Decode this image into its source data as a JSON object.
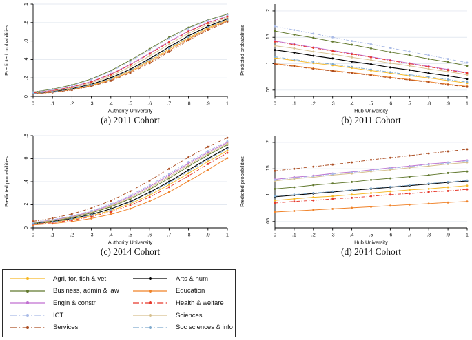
{
  "styles": {
    "agri": {
      "label": "Agri, for, fish & vet",
      "color": "#f6b824",
      "dash": false
    },
    "arts": {
      "label": "Arts & hum",
      "color": "#000000",
      "dash": false
    },
    "business": {
      "label": "Business, admin & law",
      "color": "#62792f",
      "dash": false
    },
    "education": {
      "label": "Education",
      "color": "#f08228",
      "dash": false
    },
    "engin": {
      "label": "Engin & constr",
      "color": "#c06fd0",
      "dash": false
    },
    "health": {
      "label": "Health & welfare",
      "color": "#e6372a",
      "dash": true
    },
    "ict": {
      "label": "ICT",
      "color": "#a9bae6",
      "dash": true
    },
    "sciences": {
      "label": "Sciences",
      "color": "#d6bf8d",
      "dash": false
    },
    "services": {
      "label": "Services",
      "color": "#ab4d22",
      "dash": true
    },
    "socsci": {
      "label": "Soc sciences & info",
      "color": "#7ea9cd",
      "dash": true
    }
  },
  "legend": {
    "items": [
      "agri",
      "arts",
      "business",
      "education",
      "engin",
      "health",
      "ict",
      "sciences",
      "services",
      "socsci"
    ]
  },
  "chart_data": [
    {
      "type": "line",
      "caption": "(a) 2011 Cohort",
      "xlabel": "Authority University",
      "ylabel": "Predicted probabilities",
      "x": [
        0,
        0.1,
        0.2,
        0.3,
        0.4,
        0.5,
        0.6,
        0.7,
        0.8,
        0.9,
        1
      ],
      "xtick_labels": [
        "0",
        ".1",
        ".2",
        ".3",
        ".4",
        ".5",
        ".6",
        ".7",
        ".8",
        ".9",
        "1"
      ],
      "ylim": [
        0,
        1
      ],
      "yticks": [
        0,
        0.2,
        0.4,
        0.6,
        0.8,
        1
      ],
      "ytick_labels": [
        "0",
        ".2",
        ".4",
        ".6",
        ".8",
        "1"
      ],
      "grid": true,
      "series": [
        {
          "key": "agri",
          "values": [
            0.029,
            0.048,
            0.077,
            0.121,
            0.187,
            0.276,
            0.387,
            0.512,
            0.635,
            0.743,
            0.828
          ]
        },
        {
          "key": "arts",
          "values": [
            0.032,
            0.052,
            0.083,
            0.131,
            0.201,
            0.294,
            0.409,
            0.535,
            0.656,
            0.76,
            0.84
          ]
        },
        {
          "key": "business",
          "values": [
            0.048,
            0.078,
            0.123,
            0.189,
            0.279,
            0.391,
            0.515,
            0.639,
            0.746,
            0.83,
            0.89
          ]
        },
        {
          "key": "education",
          "values": [
            0.028,
            0.045,
            0.073,
            0.115,
            0.177,
            0.264,
            0.373,
            0.497,
            0.621,
            0.732,
            0.819
          ]
        },
        {
          "key": "engin",
          "values": [
            0.04,
            0.065,
            0.104,
            0.161,
            0.242,
            0.346,
            0.468,
            0.594,
            0.708,
            0.801,
            0.87
          ]
        },
        {
          "key": "health",
          "values": [
            0.039,
            0.063,
            0.101,
            0.157,
            0.237,
            0.34,
            0.461,
            0.586,
            0.702,
            0.796,
            0.866
          ]
        },
        {
          "key": "ict",
          "values": [
            0.046,
            0.074,
            0.118,
            0.181,
            0.269,
            0.379,
            0.503,
            0.627,
            0.736,
            0.822,
            0.885
          ]
        },
        {
          "key": "sciences",
          "values": [
            0.036,
            0.058,
            0.093,
            0.146,
            0.221,
            0.32,
            0.438,
            0.564,
            0.683,
            0.781,
            0.856
          ]
        },
        {
          "key": "services",
          "values": [
            0.026,
            0.043,
            0.069,
            0.109,
            0.169,
            0.253,
            0.359,
            0.482,
            0.607,
            0.72,
            0.81
          ]
        },
        {
          "key": "socsci",
          "values": [
            0.03,
            0.049,
            0.079,
            0.125,
            0.191,
            0.282,
            0.395,
            0.52,
            0.642,
            0.749,
            0.832
          ]
        }
      ]
    },
    {
      "type": "line",
      "caption": "(b) 2011 Cohort",
      "xlabel": "Hub University",
      "ylabel": "Predicted probabilities",
      "x": [
        0,
        0.1,
        0.2,
        0.3,
        0.4,
        0.5,
        0.6,
        0.7,
        0.8,
        0.9,
        1
      ],
      "xtick_labels": [
        "0",
        ".1",
        ".2",
        ".3",
        ".4",
        ".5",
        ".6",
        ".7",
        ".8",
        ".9",
        "1"
      ],
      "ylim": [
        0.038,
        0.213
      ],
      "yticks": [
        0.05,
        0.1,
        0.15,
        0.2
      ],
      "ytick_labels": [
        ".05",
        ".1",
        ".15",
        ".2"
      ],
      "grid": true,
      "series": [
        {
          "key": "agri",
          "values": [
            0.111,
            0.106,
            0.101,
            0.097,
            0.092,
            0.087,
            0.082,
            0.077,
            0.073,
            0.068,
            0.063
          ]
        },
        {
          "key": "arts",
          "values": [
            0.126,
            0.121,
            0.115,
            0.11,
            0.104,
            0.099,
            0.093,
            0.088,
            0.082,
            0.077,
            0.071
          ]
        },
        {
          "key": "business",
          "values": [
            0.162,
            0.155,
            0.149,
            0.142,
            0.136,
            0.129,
            0.122,
            0.116,
            0.109,
            0.103,
            0.096
          ]
        },
        {
          "key": "education",
          "values": [
            0.1,
            0.096,
            0.091,
            0.087,
            0.083,
            0.079,
            0.074,
            0.07,
            0.066,
            0.061,
            0.057
          ]
        },
        {
          "key": "engin",
          "values": [
            0.143,
            0.137,
            0.131,
            0.125,
            0.119,
            0.113,
            0.107,
            0.101,
            0.095,
            0.089,
            0.083
          ]
        },
        {
          "key": "health",
          "values": [
            0.142,
            0.136,
            0.13,
            0.124,
            0.118,
            0.112,
            0.106,
            0.1,
            0.094,
            0.088,
            0.082
          ]
        },
        {
          "key": "ict",
          "values": [
            0.171,
            0.164,
            0.157,
            0.15,
            0.143,
            0.137,
            0.13,
            0.123,
            0.116,
            0.109,
            0.102
          ]
        },
        {
          "key": "sciences",
          "values": [
            0.134,
            0.129,
            0.123,
            0.118,
            0.112,
            0.107,
            0.101,
            0.096,
            0.09,
            0.085,
            0.079
          ]
        },
        {
          "key": "services",
          "values": [
            0.099,
            0.095,
            0.09,
            0.086,
            0.082,
            0.078,
            0.073,
            0.069,
            0.065,
            0.06,
            0.056
          ]
        },
        {
          "key": "socsci",
          "values": [
            0.113,
            0.108,
            0.103,
            0.099,
            0.094,
            0.089,
            0.084,
            0.079,
            0.075,
            0.07,
            0.065
          ]
        }
      ]
    },
    {
      "type": "line",
      "caption": "(c) 2014 Cohort",
      "xlabel": "Authority University",
      "ylabel": "Predicted probabilities",
      "x": [
        0,
        0.1,
        0.2,
        0.3,
        0.4,
        0.5,
        0.6,
        0.7,
        0.8,
        0.9,
        1
      ],
      "xtick_labels": [
        "0",
        ".1",
        ".2",
        ".3",
        ".4",
        ".5",
        ".6",
        ".7",
        ".8",
        ".9",
        "1"
      ],
      "ylim": [
        0,
        0.8
      ],
      "yticks": [
        0,
        0.2,
        0.4,
        0.6,
        0.8
      ],
      "ytick_labels": [
        "0",
        ".2",
        ".4",
        ".6",
        ".8"
      ],
      "grid": true,
      "series": [
        {
          "key": "agri",
          "values": [
            0.033,
            0.049,
            0.072,
            0.105,
            0.149,
            0.209,
            0.284,
            0.374,
            0.473,
            0.574,
            0.67
          ]
        },
        {
          "key": "arts",
          "values": [
            0.037,
            0.055,
            0.08,
            0.116,
            0.164,
            0.228,
            0.308,
            0.4,
            0.501,
            0.602,
            0.694
          ]
        },
        {
          "key": "business",
          "values": [
            0.042,
            0.061,
            0.089,
            0.129,
            0.182,
            0.251,
            0.334,
            0.43,
            0.532,
            0.631,
            0.72
          ]
        },
        {
          "key": "education",
          "values": [
            0.025,
            0.037,
            0.055,
            0.081,
            0.117,
            0.166,
            0.23,
            0.31,
            0.404,
            0.504,
            0.605
          ]
        },
        {
          "key": "engin",
          "values": [
            0.046,
            0.068,
            0.098,
            0.141,
            0.198,
            0.271,
            0.358,
            0.457,
            0.558,
            0.655,
            0.741
          ]
        },
        {
          "key": "health",
          "values": [
            0.031,
            0.045,
            0.066,
            0.097,
            0.139,
            0.195,
            0.267,
            0.353,
            0.451,
            0.553,
            0.65
          ]
        },
        {
          "key": "ict",
          "values": [
            0.048,
            0.071,
            0.103,
            0.147,
            0.206,
            0.281,
            0.37,
            0.469,
            0.571,
            0.666,
            0.75
          ]
        },
        {
          "key": "sciences",
          "values": [
            0.044,
            0.064,
            0.094,
            0.135,
            0.19,
            0.26,
            0.346,
            0.443,
            0.545,
            0.643,
            0.73
          ]
        },
        {
          "key": "services",
          "values": [
            0.057,
            0.083,
            0.12,
            0.17,
            0.235,
            0.317,
            0.41,
            0.512,
            0.612,
            0.703,
            0.781
          ]
        },
        {
          "key": "socsci",
          "values": [
            0.035,
            0.052,
            0.077,
            0.111,
            0.158,
            0.22,
            0.298,
            0.39,
            0.49,
            0.591,
            0.685
          ]
        }
      ]
    },
    {
      "type": "line",
      "caption": "(d) 2014 Cohort",
      "xlabel": "Hub University",
      "ylabel": "Predicted probabilities",
      "x": [
        0,
        0.1,
        0.2,
        0.3,
        0.4,
        0.5,
        0.6,
        0.7,
        0.8,
        0.9,
        1
      ],
      "xtick_labels": [
        "0",
        ".1",
        ".2",
        ".3",
        ".4",
        ".5",
        ".6",
        ".7",
        ".8",
        ".9",
        "1"
      ],
      "ylim": [
        0.038,
        0.213
      ],
      "yticks": [
        0.05,
        0.1,
        0.15,
        0.2
      ],
      "ytick_labels": [
        ".05",
        ".1",
        ".15",
        ".2"
      ],
      "grid": true,
      "series": [
        {
          "key": "agri",
          "values": [
            0.09,
            0.093,
            0.096,
            0.098,
            0.101,
            0.104,
            0.107,
            0.11,
            0.112,
            0.115,
            0.118
          ]
        },
        {
          "key": "arts",
          "values": [
            0.097,
            0.1,
            0.103,
            0.106,
            0.109,
            0.112,
            0.115,
            0.118,
            0.121,
            0.124,
            0.127
          ]
        },
        {
          "key": "business",
          "values": [
            0.112,
            0.115,
            0.119,
            0.122,
            0.125,
            0.129,
            0.132,
            0.135,
            0.138,
            0.142,
            0.145
          ]
        },
        {
          "key": "education",
          "values": [
            0.068,
            0.07,
            0.072,
            0.074,
            0.076,
            0.078,
            0.08,
            0.082,
            0.084,
            0.086,
            0.088
          ]
        },
        {
          "key": "engin",
          "values": [
            0.13,
            0.134,
            0.137,
            0.141,
            0.144,
            0.148,
            0.152,
            0.155,
            0.159,
            0.162,
            0.166
          ]
        },
        {
          "key": "health",
          "values": [
            0.085,
            0.088,
            0.09,
            0.093,
            0.095,
            0.098,
            0.101,
            0.103,
            0.106,
            0.108,
            0.111
          ]
        },
        {
          "key": "ict",
          "values": [
            0.129,
            0.133,
            0.136,
            0.14,
            0.143,
            0.147,
            0.151,
            0.154,
            0.158,
            0.161,
            0.165
          ]
        },
        {
          "key": "sciences",
          "values": [
            0.127,
            0.131,
            0.134,
            0.138,
            0.141,
            0.145,
            0.148,
            0.152,
            0.155,
            0.159,
            0.162
          ]
        },
        {
          "key": "services",
          "values": [
            0.146,
            0.15,
            0.154,
            0.158,
            0.162,
            0.167,
            0.171,
            0.175,
            0.179,
            0.183,
            0.187
          ]
        },
        {
          "key": "socsci",
          "values": [
            0.098,
            0.101,
            0.104,
            0.107,
            0.11,
            0.113,
            0.116,
            0.119,
            0.122,
            0.125,
            0.128
          ]
        }
      ]
    }
  ]
}
